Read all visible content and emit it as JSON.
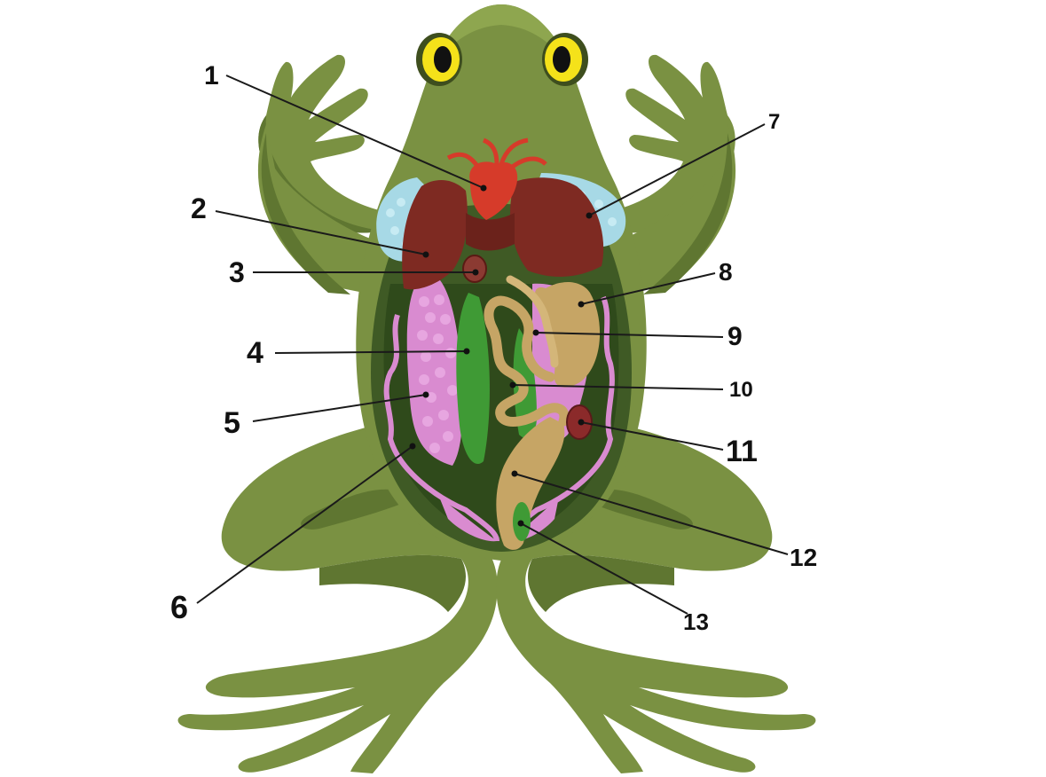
{
  "diagram": {
    "subject": "frog-internal-anatomy",
    "colors": {
      "skin": "#7a9142",
      "skin_dark": "#5f7631",
      "skin_light": "#8ea64f",
      "cavity": "#3f5a25",
      "heart": "#d63b2a",
      "liver": "#7e2a22",
      "lung": "#a7d9e6",
      "fat_body": "#d98bd0",
      "stomach_intestine": "#c6a565",
      "gut_green": "#3f9a35",
      "eye_yellow": "#f5e21a",
      "kidney": "#8b2a2a"
    },
    "labels": [
      {
        "id": "1",
        "text": "1"
      },
      {
        "id": "2",
        "text": "2"
      },
      {
        "id": "3",
        "text": "3"
      },
      {
        "id": "4",
        "text": "4"
      },
      {
        "id": "5",
        "text": "5"
      },
      {
        "id": "6",
        "text": "6"
      },
      {
        "id": "7",
        "text": "7"
      },
      {
        "id": "8",
        "text": "8"
      },
      {
        "id": "9",
        "text": "9"
      },
      {
        "id": "10",
        "text": "10"
      },
      {
        "id": "11",
        "text": "11"
      },
      {
        "id": "12",
        "text": "12"
      },
      {
        "id": "13",
        "text": "13"
      }
    ]
  }
}
